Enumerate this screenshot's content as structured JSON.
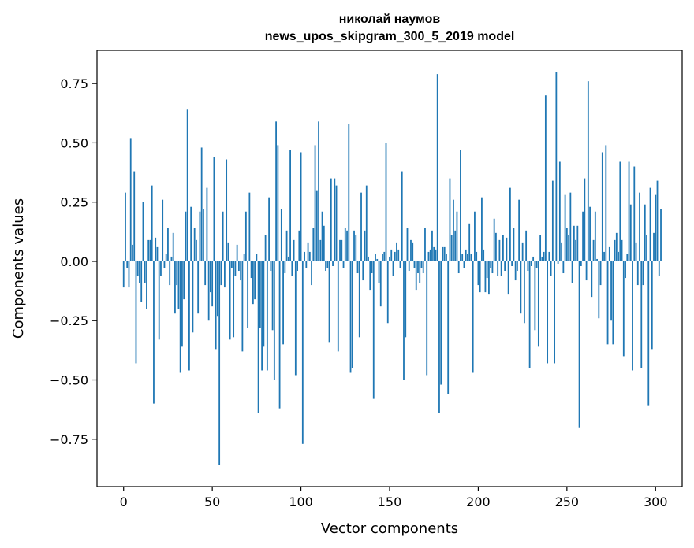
{
  "chart_data": {
    "type": "bar",
    "title_line1": "николай наумов",
    "title_line2": "news_upos_skipgram_300_5_2019 model",
    "xlabel": "Vector components",
    "ylabel": "Components values",
    "xlim": [
      -15,
      315
    ],
    "ylim": [
      -0.95,
      0.89
    ],
    "xticks": [
      0,
      50,
      100,
      150,
      200,
      250,
      300
    ],
    "xtick_labels": [
      "0",
      "50",
      "100",
      "150",
      "200",
      "250",
      "300"
    ],
    "yticks": [
      -0.75,
      -0.5,
      -0.25,
      0.0,
      0.25,
      0.5,
      0.75
    ],
    "ytick_labels": [
      "−0.75",
      "−0.50",
      "−0.25",
      "0.00",
      "0.25",
      "0.50",
      "0.75"
    ],
    "color": "#1f77b4",
    "grid": false,
    "values": [
      -0.11,
      0.29,
      -0.03,
      -0.11,
      0.52,
      0.07,
      0.38,
      -0.43,
      -0.06,
      -0.09,
      -0.17,
      0.25,
      -0.09,
      -0.2,
      0.09,
      0.09,
      0.32,
      -0.6,
      0.1,
      0.06,
      -0.33,
      -0.06,
      0.26,
      -0.03,
      0.03,
      0.14,
      -0.1,
      0.02,
      0.12,
      -0.22,
      -0.1,
      -0.2,
      -0.47,
      -0.36,
      -0.16,
      0.21,
      0.64,
      -0.46,
      0.23,
      -0.3,
      0.14,
      0.09,
      -0.22,
      0.21,
      0.48,
      0.22,
      -0.1,
      0.31,
      -0.25,
      -0.13,
      -0.19,
      0.44,
      -0.37,
      -0.23,
      -0.86,
      -0.1,
      0.21,
      -0.11,
      0.43,
      0.08,
      -0.33,
      -0.03,
      -0.32,
      -0.06,
      0.07,
      -0.04,
      -0.08,
      -0.38,
      0.03,
      0.21,
      -0.28,
      0.29,
      -0.07,
      -0.18,
      -0.16,
      0.03,
      -0.64,
      -0.28,
      -0.46,
      -0.36,
      0.11,
      -0.46,
      0.27,
      -0.04,
      -0.29,
      -0.5,
      0.59,
      0.49,
      -0.62,
      0.22,
      -0.35,
      -0.05,
      0.13,
      0.02,
      0.47,
      -0.06,
      0.09,
      -0.48,
      -0.04,
      0.13,
      0.46,
      -0.77,
      0.04,
      -0.03,
      0.08,
      0.04,
      -0.1,
      0.14,
      0.49,
      0.3,
      0.59,
      0.09,
      0.21,
      0.15,
      -0.04,
      -0.03,
      -0.34,
      0.35,
      -0.02,
      0.35,
      0.32,
      -0.38,
      0.09,
      0.09,
      -0.03,
      0.14,
      0.13,
      0.58,
      -0.47,
      -0.45,
      0.13,
      0.11,
      -0.05,
      -0.32,
      0.29,
      -0.08,
      0.13,
      0.32,
      0.02,
      -0.12,
      -0.05,
      -0.58,
      0.03,
      0.01,
      -0.09,
      -0.19,
      0.03,
      0.04,
      0.5,
      -0.26,
      0.02,
      0.05,
      -0.06,
      0.04,
      0.08,
      0.05,
      -0.03,
      0.38,
      -0.5,
      -0.32,
      0.14,
      -0.04,
      0.09,
      0.08,
      -0.03,
      -0.12,
      -0.05,
      -0.09,
      -0.03,
      -0.05,
      0.14,
      -0.48,
      0.04,
      0.05,
      0.13,
      0.06,
      0.05,
      0.79,
      -0.64,
      -0.52,
      0.06,
      0.06,
      0.03,
      -0.56,
      0.35,
      0.11,
      0.26,
      0.13,
      0.21,
      -0.05,
      0.47,
      0.03,
      -0.03,
      0.05,
      0.03,
      0.16,
      0.03,
      -0.47,
      0.21,
      0.04,
      -0.1,
      -0.13,
      0.27,
      0.05,
      -0.13,
      -0.07,
      -0.14,
      -0.03,
      -0.05,
      0.18,
      0.12,
      -0.06,
      0.09,
      -0.06,
      0.11,
      -0.04,
      0.1,
      -0.14,
      0.31,
      -0.02,
      0.14,
      -0.08,
      -0.04,
      0.26,
      -0.22,
      0.08,
      -0.26,
      0.13,
      -0.04,
      -0.45,
      -0.02,
      0.02,
      -0.29,
      -0.03,
      -0.36,
      0.11,
      0.02,
      0.04,
      0.7,
      -0.43,
      0.04,
      -0.06,
      0.34,
      -0.43,
      0.8,
      -0.01,
      0.42,
      0.08,
      -0.05,
      0.28,
      0.14,
      0.11,
      0.29,
      -0.09,
      0.15,
      0.09,
      0.15,
      -0.7,
      -0.02,
      0.21,
      0.35,
      -0.08,
      0.76,
      0.23,
      -0.15,
      0.09,
      0.21,
      0.01,
      -0.24,
      -0.1,
      0.46,
      0.04,
      0.49,
      -0.35,
      0.06,
      -0.25,
      -0.35,
      0.09,
      0.12,
      0.04,
      0.42,
      0.09,
      -0.4,
      -0.07,
      0.03,
      0.42,
      0.24,
      -0.46,
      0.4,
      0.08,
      -0.1,
      0.29,
      -0.45,
      -0.1,
      0.24,
      0.11,
      -0.61,
      0.31,
      -0.37,
      0.12,
      0.28,
      0.34,
      -0.06,
      0.22
    ]
  }
}
